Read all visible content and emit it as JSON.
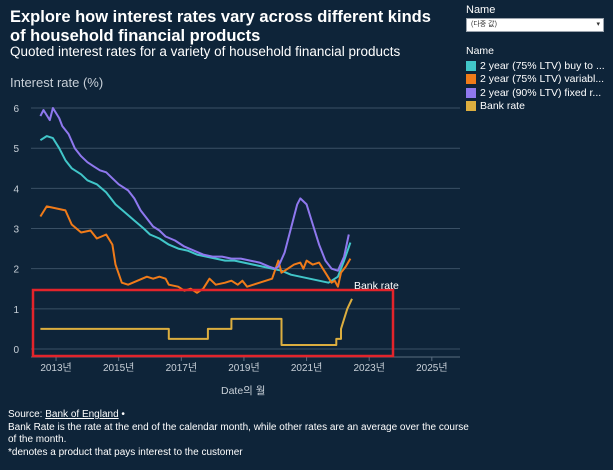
{
  "title": "Explore how interest rates vary across different kinds of household financial products",
  "subtitle": "Quoted interest rates for a variety of household financial products",
  "filter": {
    "label": "Name",
    "value": "(다중 값)",
    "arrow": "▾"
  },
  "legend": {
    "title": "Name",
    "items": [
      {
        "label": "2 year (75% LTV) buy to ...",
        "color": "#41c6c9"
      },
      {
        "label": "2 year (75% LTV) variabl...",
        "color": "#f07b19"
      },
      {
        "label": "2 year (90% LTV) fixed r...",
        "color": "#8f78ef"
      },
      {
        "label": "Bank rate",
        "color": "#dcae3f"
      }
    ]
  },
  "footer": {
    "source_prefix": "Source: ",
    "source_link": "Bank of England",
    "source_suffix": " •",
    "note1": "Bank Rate is the rate at the end of the calendar month, while other rates are an average over the course of the month.",
    "note2": "*denotes a product that pays interest to the customer"
  },
  "annotation": {
    "text": "Bank rate",
    "box_color": "#e3242b"
  },
  "chart_data": {
    "type": "line",
    "ylabel": "Interest rate (%)",
    "xlabel": "Date의 월",
    "ylim": [
      -0.2,
      6.2
    ],
    "xlim": [
      2012.2,
      2025.9
    ],
    "yticks": [
      0,
      1,
      2,
      3,
      4,
      5,
      6
    ],
    "xticks": [
      {
        "value": 2013,
        "label": "2013년"
      },
      {
        "value": 2015,
        "label": "2015년"
      },
      {
        "value": 2017,
        "label": "2017년"
      },
      {
        "value": 2019,
        "label": "2019년"
      },
      {
        "value": 2021,
        "label": "2021년"
      },
      {
        "value": 2023,
        "label": "2023년"
      },
      {
        "value": 2025,
        "label": "2025년"
      }
    ],
    "grid": "horizontal",
    "series": [
      {
        "name": "2 year (75% LTV) buy to ...",
        "color": "#41c6c9",
        "points": [
          [
            2012.5,
            5.2
          ],
          [
            2012.7,
            5.3
          ],
          [
            2012.9,
            5.25
          ],
          [
            2013.1,
            5.0
          ],
          [
            2013.3,
            4.7
          ],
          [
            2013.5,
            4.5
          ],
          [
            2013.8,
            4.35
          ],
          [
            2014.0,
            4.2
          ],
          [
            2014.3,
            4.1
          ],
          [
            2014.6,
            3.9
          ],
          [
            2014.9,
            3.6
          ],
          [
            2015.2,
            3.4
          ],
          [
            2015.5,
            3.2
          ],
          [
            2015.8,
            3.0
          ],
          [
            2016.0,
            2.85
          ],
          [
            2016.3,
            2.75
          ],
          [
            2016.6,
            2.6
          ],
          [
            2016.9,
            2.5
          ],
          [
            2017.2,
            2.45
          ],
          [
            2017.5,
            2.35
          ],
          [
            2017.8,
            2.3
          ],
          [
            2018.1,
            2.25
          ],
          [
            2018.4,
            2.2
          ],
          [
            2018.7,
            2.2
          ],
          [
            2019.0,
            2.15
          ],
          [
            2019.3,
            2.1
          ],
          [
            2019.6,
            2.05
          ],
          [
            2019.9,
            2.0
          ],
          [
            2020.2,
            1.95
          ],
          [
            2020.5,
            1.85
          ],
          [
            2020.8,
            1.8
          ],
          [
            2021.1,
            1.75
          ],
          [
            2021.4,
            1.7
          ],
          [
            2021.7,
            1.65
          ],
          [
            2022.0,
            1.8
          ],
          [
            2022.2,
            2.2
          ],
          [
            2022.4,
            2.65
          ]
        ]
      },
      {
        "name": "2 year (75% LTV) variabl...",
        "color": "#f07b19",
        "points": [
          [
            2012.5,
            3.3
          ],
          [
            2012.7,
            3.55
          ],
          [
            2013.0,
            3.5
          ],
          [
            2013.3,
            3.45
          ],
          [
            2013.5,
            3.1
          ],
          [
            2013.8,
            2.9
          ],
          [
            2014.1,
            2.95
          ],
          [
            2014.3,
            2.75
          ],
          [
            2014.6,
            2.85
          ],
          [
            2014.8,
            2.6
          ],
          [
            2014.9,
            2.1
          ],
          [
            2015.1,
            1.65
          ],
          [
            2015.3,
            1.6
          ],
          [
            2015.6,
            1.7
          ],
          [
            2015.9,
            1.8
          ],
          [
            2016.1,
            1.75
          ],
          [
            2016.3,
            1.8
          ],
          [
            2016.5,
            1.75
          ],
          [
            2016.6,
            1.6
          ],
          [
            2016.9,
            1.55
          ],
          [
            2017.1,
            1.45
          ],
          [
            2017.3,
            1.5
          ],
          [
            2017.5,
            1.4
          ],
          [
            2017.7,
            1.5
          ],
          [
            2017.9,
            1.75
          ],
          [
            2018.1,
            1.6
          ],
          [
            2018.4,
            1.65
          ],
          [
            2018.6,
            1.7
          ],
          [
            2018.8,
            1.6
          ],
          [
            2018.95,
            1.7
          ],
          [
            2019.1,
            1.55
          ],
          [
            2019.3,
            1.6
          ],
          [
            2019.5,
            1.65
          ],
          [
            2019.7,
            1.7
          ],
          [
            2019.9,
            1.75
          ],
          [
            2020.1,
            2.2
          ],
          [
            2020.2,
            1.9
          ],
          [
            2020.4,
            2.0
          ],
          [
            2020.6,
            2.1
          ],
          [
            2020.8,
            2.15
          ],
          [
            2020.9,
            2.0
          ],
          [
            2021.0,
            2.2
          ],
          [
            2021.2,
            2.1
          ],
          [
            2021.4,
            2.15
          ],
          [
            2021.6,
            1.9
          ],
          [
            2021.8,
            1.65
          ],
          [
            2021.9,
            1.7
          ],
          [
            2022.0,
            1.55
          ],
          [
            2022.1,
            1.9
          ],
          [
            2022.25,
            2.05
          ],
          [
            2022.4,
            2.25
          ]
        ]
      },
      {
        "name": "2 year (90% LTV) fixed r...",
        "color": "#8f78ef",
        "points": [
          [
            2012.5,
            5.8
          ],
          [
            2012.6,
            5.95
          ],
          [
            2012.8,
            5.7
          ],
          [
            2012.9,
            6.0
          ],
          [
            2013.1,
            5.75
          ],
          [
            2013.2,
            5.55
          ],
          [
            2013.4,
            5.35
          ],
          [
            2013.6,
            5.0
          ],
          [
            2013.8,
            4.8
          ],
          [
            2014.0,
            4.65
          ],
          [
            2014.2,
            4.55
          ],
          [
            2014.4,
            4.45
          ],
          [
            2014.6,
            4.4
          ],
          [
            2014.8,
            4.25
          ],
          [
            2015.0,
            4.1
          ],
          [
            2015.3,
            3.95
          ],
          [
            2015.5,
            3.75
          ],
          [
            2015.7,
            3.45
          ],
          [
            2015.9,
            3.25
          ],
          [
            2016.1,
            3.05
          ],
          [
            2016.3,
            2.95
          ],
          [
            2016.5,
            2.8
          ],
          [
            2016.8,
            2.7
          ],
          [
            2017.1,
            2.55
          ],
          [
            2017.4,
            2.45
          ],
          [
            2017.7,
            2.35
          ],
          [
            2018.0,
            2.3
          ],
          [
            2018.3,
            2.3
          ],
          [
            2018.6,
            2.25
          ],
          [
            2018.9,
            2.25
          ],
          [
            2019.2,
            2.2
          ],
          [
            2019.5,
            2.15
          ],
          [
            2019.8,
            2.05
          ],
          [
            2020.0,
            2.0
          ],
          [
            2020.1,
            2.05
          ],
          [
            2020.3,
            2.4
          ],
          [
            2020.5,
            3.0
          ],
          [
            2020.7,
            3.6
          ],
          [
            2020.8,
            3.75
          ],
          [
            2021.0,
            3.6
          ],
          [
            2021.2,
            3.1
          ],
          [
            2021.4,
            2.6
          ],
          [
            2021.6,
            2.2
          ],
          [
            2021.8,
            2.0
          ],
          [
            2022.0,
            1.95
          ],
          [
            2022.2,
            2.3
          ],
          [
            2022.35,
            2.85
          ]
        ]
      },
      {
        "name": "Bank rate",
        "color": "#dcae3f",
        "points": [
          [
            2012.5,
            0.5
          ],
          [
            2016.6,
            0.5
          ],
          [
            2016.6,
            0.25
          ],
          [
            2017.85,
            0.25
          ],
          [
            2017.85,
            0.5
          ],
          [
            2018.6,
            0.5
          ],
          [
            2018.6,
            0.75
          ],
          [
            2020.2,
            0.75
          ],
          [
            2020.2,
            0.1
          ],
          [
            2021.95,
            0.1
          ],
          [
            2021.95,
            0.25
          ],
          [
            2022.1,
            0.25
          ],
          [
            2022.1,
            0.5
          ],
          [
            2022.2,
            0.75
          ],
          [
            2022.3,
            1.0
          ],
          [
            2022.45,
            1.25
          ]
        ]
      }
    ]
  }
}
